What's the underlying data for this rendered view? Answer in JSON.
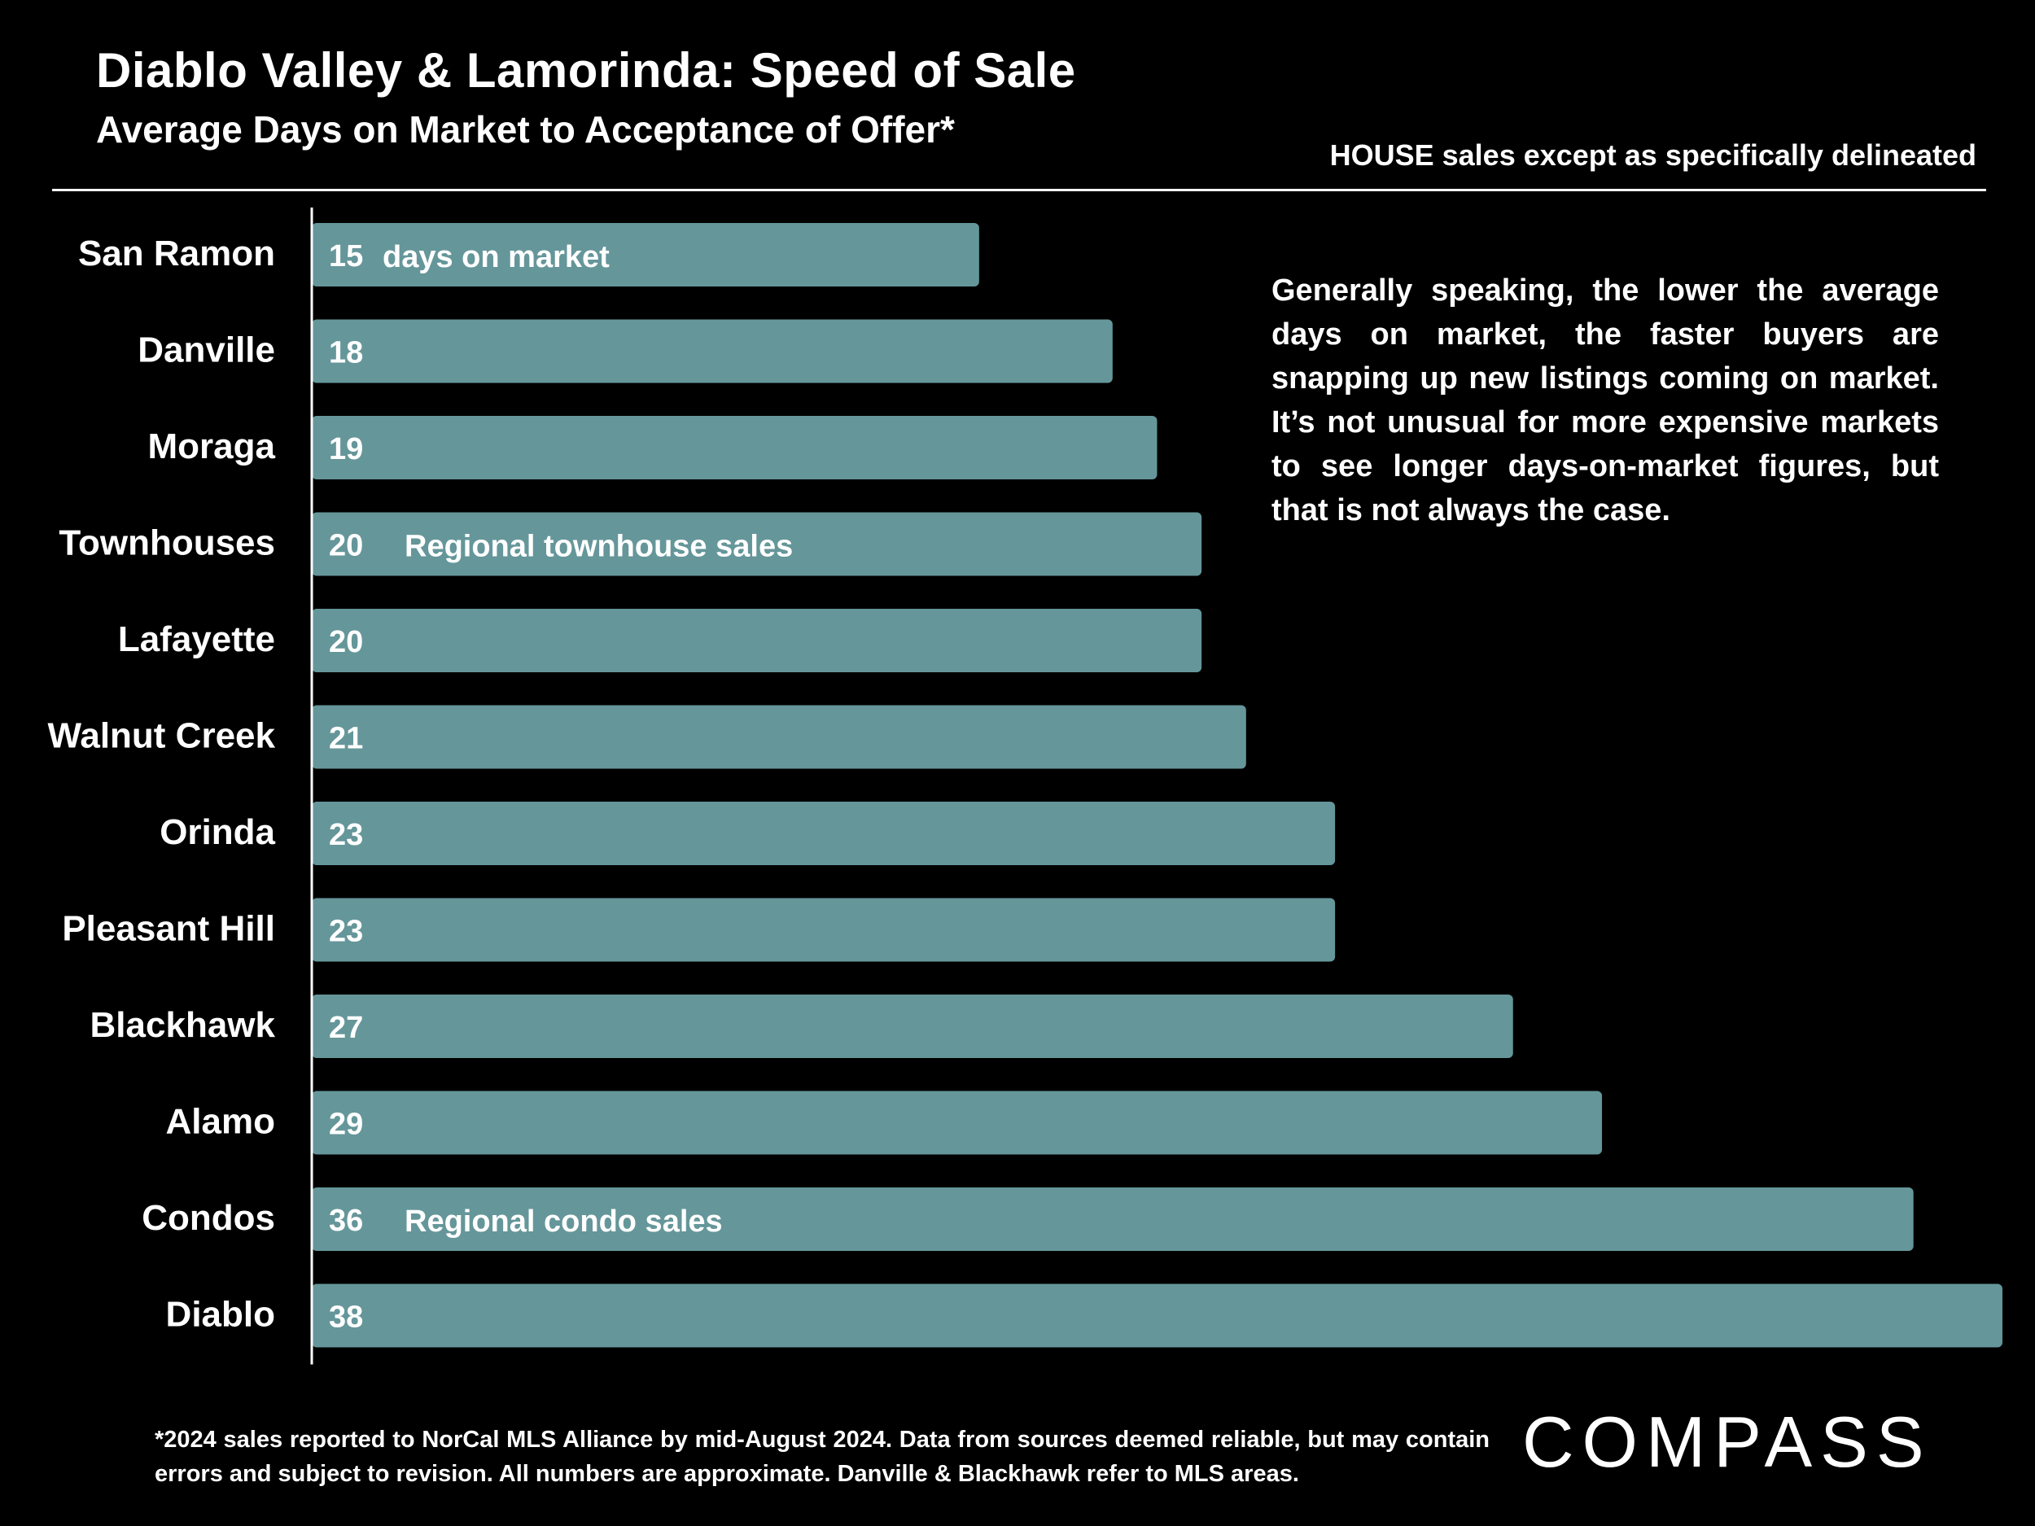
{
  "header": {
    "title": "Diablo Valley & Lamorinda:  Speed of Sale",
    "subtitle": "Average Days on Market to Acceptance of Offer*",
    "scope_note": "HOUSE sales except as specifically delineated"
  },
  "commentary": "Generally speaking, the lower the average days on market, the faster buyers are snapping up new listings coming on market. It’s not unusual for more expensive markets to see longer days-on-market figures, but that is not always the case.",
  "footnote": "*2024 sales reported to NorCal MLS Alliance by mid-August 2024. Data from sources deemed reliable, but may contain errors and subject to revision. All numbers are approximate. Danville & Blackhawk refer to MLS areas.",
  "logo": {
    "text": "COMPASS"
  },
  "colors": {
    "background": "#000000",
    "bar": "#65969a",
    "text": "#ffffff"
  },
  "chart_data": {
    "type": "bar",
    "orientation": "horizontal",
    "title": "Average Days on Market to Acceptance of Offer*",
    "xlabel": "",
    "ylabel": "",
    "xlim": [
      0,
      38
    ],
    "grid": false,
    "categories": [
      "San Ramon",
      "Danville",
      "Moraga",
      "Townhouses",
      "Lafayette",
      "Walnut Creek",
      "Orinda",
      "Pleasant Hill",
      "Blackhawk",
      "Alamo",
      "Condos",
      "Diablo"
    ],
    "values": [
      15,
      18,
      19,
      20,
      20,
      21,
      23,
      23,
      27,
      29,
      36,
      38
    ],
    "annotations": [
      "days on market",
      "",
      "",
      "Regional townhouse sales",
      "",
      "",
      "",
      "",
      "",
      "",
      "Regional condo sales",
      ""
    ]
  }
}
